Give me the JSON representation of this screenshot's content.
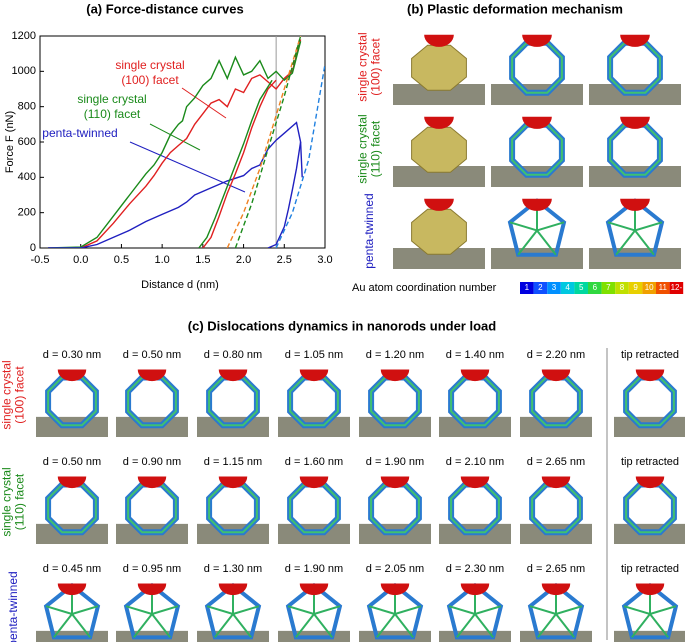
{
  "chart_data": {
    "type": "line",
    "title": "(a)  Force-distance curves",
    "xlabel": "Distance d (nm)",
    "ylabel": "Force F (nN)",
    "xlim": [
      -0.5,
      3.0
    ],
    "xticks": [
      -0.5,
      {
        "value": 0,
        "label": "0.0"
      },
      0.5,
      {
        "value": 1,
        "label": "1.0"
      },
      1.5,
      {
        "value": 2,
        "label": "2.0"
      },
      2.5,
      {
        "value": 3,
        "label": "3.0"
      }
    ],
    "ylim": [
      0,
      1200
    ],
    "yticks": [
      0,
      200,
      400,
      600,
      800,
      1000,
      1200
    ],
    "reference_x": 2.4,
    "series": [
      {
        "label": [
          "single crystal",
          "(100) facet"
        ],
        "color": "#e02020",
        "x": [
          -0.4,
          0,
          0.2,
          0.4,
          0.6,
          0.8,
          0.9,
          1.0,
          1.1,
          1.2,
          1.25,
          1.3,
          1.4,
          1.5,
          1.6,
          1.7,
          1.8,
          1.9,
          2.0,
          2.1,
          2.2,
          2.3,
          2.4,
          2.5,
          2.6,
          2.7
        ],
        "values": [
          0,
          0,
          40,
          140,
          250,
          350,
          410,
          480,
          540,
          580,
          600,
          620,
          700,
          760,
          820,
          840,
          800,
          900,
          880,
          960,
          980,
          940,
          900,
          960,
          1000,
          1180
        ]
      },
      {
        "label": [
          "single crystal",
          "(110) facet"
        ],
        "color": "#1a8a1a",
        "x": [
          -0.4,
          0,
          0.2,
          0.4,
          0.6,
          0.8,
          0.9,
          1.0,
          1.1,
          1.2,
          1.25,
          1.3,
          1.4,
          1.5,
          1.6,
          1.7,
          1.8,
          1.9,
          2.0,
          2.1,
          2.2,
          2.3,
          2.4,
          2.5,
          2.6,
          2.7
        ],
        "values": [
          0,
          5,
          60,
          180,
          300,
          420,
          470,
          540,
          640,
          700,
          720,
          800,
          850,
          920,
          960,
          1060,
          960,
          1080,
          980,
          1000,
          1060,
          960,
          1000,
          950,
          990,
          1170
        ]
      },
      {
        "label": [
          "penta-twinned"
        ],
        "color": "#2020c0",
        "x": [
          -0.4,
          0,
          0.2,
          0.4,
          0.6,
          0.8,
          1.0,
          1.2,
          1.3,
          1.4,
          1.6,
          1.8,
          2.0,
          2.1,
          2.2,
          2.3,
          2.4,
          2.5,
          2.6,
          2.65,
          2.7,
          2.72
        ],
        "values": [
          0,
          0,
          20,
          60,
          100,
          150,
          190,
          230,
          260,
          300,
          340,
          380,
          410,
          450,
          470,
          560,
          610,
          650,
          690,
          710,
          600,
          400
        ]
      },
      {
        "color": "#e02020",
        "x": [
          1.5,
          1.6,
          1.7,
          1.8,
          1.9,
          2.0,
          2.1,
          2.2,
          2.3,
          2.4
        ],
        "values": [
          0,
          60,
          180,
          310,
          420,
          540,
          680,
          800,
          900,
          950
        ]
      },
      {
        "color": "#1a8a1a",
        "x": [
          1.45,
          1.55,
          1.65,
          1.8,
          1.9,
          2.0,
          2.1,
          2.2,
          2.35
        ],
        "values": [
          0,
          60,
          170,
          350,
          470,
          590,
          720,
          840,
          950
        ]
      },
      {
        "color": "#2020c0",
        "x": [
          2.3,
          2.4,
          2.5,
          2.55,
          2.6,
          2.65,
          2.7
        ],
        "values": [
          0,
          20,
          120,
          220,
          330,
          450,
          600
        ]
      },
      {
        "color": "#f08020",
        "dashed": true,
        "x": [
          1.8,
          2.0,
          2.2,
          2.4,
          2.6,
          2.7
        ],
        "values": [
          0,
          200,
          450,
          750,
          1050,
          1200
        ]
      },
      {
        "color": "#1a8a1a",
        "dashed": true,
        "x": [
          1.9,
          2.1,
          2.3,
          2.5,
          2.7
        ],
        "values": [
          0,
          250,
          560,
          860,
          1200
        ]
      },
      {
        "color": "#2080e0",
        "dashed": true,
        "x": [
          2.4,
          2.6,
          2.8,
          3.0
        ],
        "values": [
          0,
          200,
          500,
          1040
        ]
      }
    ]
  },
  "panel_b": {
    "title": "(b)  Plastic deformation mechanism",
    "rows": [
      {
        "label": [
          "single crystal",
          "(100) facet"
        ],
        "color": "#e02020"
      },
      {
        "label": [
          "single crystal",
          "(110) facet"
        ],
        "color": "#1a8a1a"
      },
      {
        "label": [
          "penta-twinned"
        ],
        "color": "#2020c0"
      }
    ],
    "colorbar": {
      "label": "Au atom coordination number",
      "labels": [
        "1",
        "2",
        "3",
        "4",
        "5",
        "6",
        "7",
        "8",
        "9",
        "10",
        "11",
        "12-"
      ],
      "colors": [
        "#0000e0",
        "#1050ff",
        "#0090ff",
        "#00c8e0",
        "#00d8a0",
        "#30d840",
        "#80e000",
        "#c0e000",
        "#e8d000",
        "#f0a000",
        "#f05000",
        "#e00000"
      ]
    }
  },
  "panel_c": {
    "title": "(c)  Dislocations dynamics in nanorods under load",
    "rows": [
      {
        "label": [
          "single crystal",
          "(100) facet"
        ],
        "color": "#e02020",
        "frames": [
          "d = 0.30 nm",
          "d = 0.50 nm",
          "d = 0.80 nm",
          "d = 1.05 nm",
          "d = 1.20 nm",
          "d = 1.40 nm",
          "d = 2.20 nm",
          "tip retracted"
        ]
      },
      {
        "label": [
          "single crystal",
          "(110) facet"
        ],
        "color": "#1a8a1a",
        "frames": [
          "d = 0.50 nm",
          "d = 0.90 nm",
          "d = 1.15 nm",
          "d = 1.60 nm",
          "d = 1.90 nm",
          "d = 2.10 nm",
          "d = 2.65 nm",
          "tip retracted"
        ]
      },
      {
        "label": [
          "penta-twinned"
        ],
        "color": "#2020c0",
        "frames": [
          "d = 0.45 nm",
          "d = 0.95 nm",
          "d = 1.30 nm",
          "d = 1.90 nm",
          "d = 2.05 nm",
          "d = 2.30 nm",
          "d = 2.65 nm",
          "tip retracted"
        ]
      }
    ]
  }
}
